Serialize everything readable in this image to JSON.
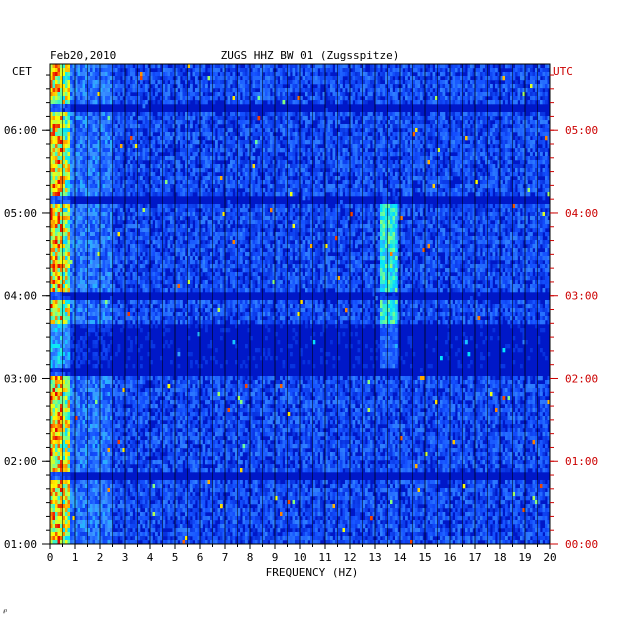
{
  "chart_data": {
    "type": "heatmap",
    "date": "Feb20,2010",
    "title": "ZUGS HHZ BW 01 (Zugsspitze)",
    "xlabel": "FREQUENCY (HZ)",
    "left_label": "CET",
    "right_label": "UTC",
    "xlim": [
      0,
      20
    ],
    "x_ticks": [
      0,
      1,
      2,
      3,
      4,
      5,
      6,
      7,
      8,
      9,
      10,
      11,
      12,
      13,
      14,
      15,
      16,
      17,
      18,
      19,
      20
    ],
    "y_ticks_cet": [
      "06:00",
      "05:00",
      "04:00",
      "03:00",
      "02:00",
      "01:00"
    ],
    "y_ticks_utc": [
      "05:00",
      "04:00",
      "03:00",
      "02:00",
      "01:00",
      "00:00"
    ],
    "time_range_utc_hours": [
      0,
      5.8
    ],
    "colors": {
      "background": "#0018c8",
      "low": "#0000b4",
      "mid": "#2a6bff",
      "high": "#00ffff",
      "peak": "#ffff00",
      "hot": "#ff0000",
      "utc_text": "#cc0000"
    },
    "features": {
      "low_freq_band_hz": [
        0,
        0.8
      ],
      "band_13_5hz": {
        "freq_hz": 13.5,
        "utc_hours": [
          2.1,
          4.2
        ]
      },
      "quiet_band_utc_hours": [
        2.1,
        2.65
      ],
      "dark_stripes_utc_hours": [
        5.25,
        4.15,
        3.0,
        2.1,
        0.8
      ]
    }
  },
  "corner_mark": "℘"
}
